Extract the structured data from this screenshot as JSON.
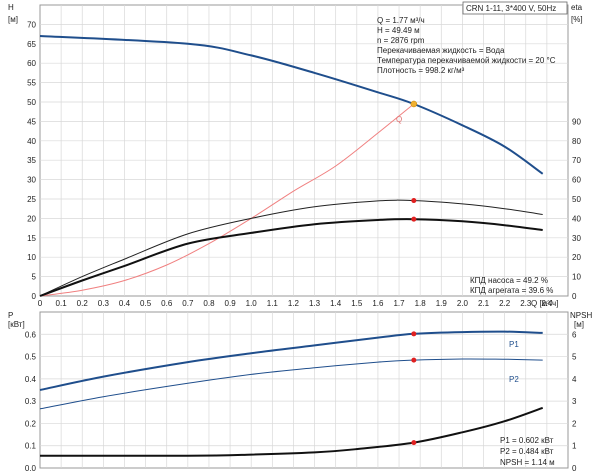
{
  "chart_data": [
    {
      "type": "line",
      "model": "CRN 1-11, 3*400 V, 50Hz",
      "x_label": "Q [м³/ч]",
      "x_ticks": [
        "0",
        "0.1",
        "0.2",
        "0.3",
        "0.4",
        "0.5",
        "0.6",
        "0.7",
        "0.8",
        "0.9",
        "1.0",
        "1.1",
        "1.2",
        "1.3",
        "1.4",
        "1.5",
        "1.6",
        "1.7",
        "1.8",
        "1.9",
        "2.0",
        "2.1",
        "2.2",
        "2.3",
        "2.4"
      ],
      "xlim": [
        0,
        2.5
      ],
      "left_axis": {
        "label_top": "H",
        "label_unit": "[м]",
        "ticks": [
          "0",
          "5",
          "10",
          "15",
          "20",
          "25",
          "30",
          "35",
          "40",
          "45",
          "50",
          "55",
          "60",
          "65",
          "70"
        ],
        "ylim": [
          0,
          75
        ]
      },
      "right_axis": {
        "label_top": "eta",
        "label_unit": "[%]",
        "ticks": [
          "0",
          "10",
          "20",
          "30",
          "40",
          "50",
          "60",
          "70",
          "80",
          "90"
        ],
        "ylim": [
          0,
          150
        ]
      },
      "info_lines": [
        "Q = 1.77 м³/ч",
        "H = 49.49 м",
        "n = 2876 rpm",
        "Перекачиваемая жидкость = Вода",
        "Температура перекачиваемой жидкости = 20 °C",
        "Плотность = 998.2 кг/м³"
      ],
      "eff_lines": [
        "КПД насоса = 49.2 %",
        "КПД агрегата = 39.6 %"
      ],
      "op_label": "Q",
      "op_point": {
        "x": 1.77,
        "H": 49.49,
        "eta_pump": 49.2,
        "eta_unit": 39.6
      },
      "series": [
        {
          "axis": "left",
          "color": "#1f4e8c",
          "width": 2,
          "x": [
            0,
            0.7,
            1.0,
            1.3,
            1.6,
            1.77,
            2.0,
            2.2,
            2.38
          ],
          "y": [
            67,
            65,
            62,
            57.5,
            52.5,
            49.49,
            44,
            38.5,
            31.5
          ]
        },
        {
          "axis": "left",
          "color": "#f08080",
          "width": 1,
          "x": [
            0,
            0.2,
            0.4,
            0.6,
            0.8,
            1.0,
            1.2,
            1.4,
            1.6,
            1.77
          ],
          "y": [
            0,
            1.5,
            4,
            8,
            13.5,
            20,
            27,
            33.5,
            42,
            49.49
          ]
        },
        {
          "axis": "right",
          "color": "#222222",
          "width": 1,
          "dashed": false,
          "x": [
            0,
            0.2,
            0.4,
            0.7,
            1.0,
            1.3,
            1.6,
            1.77,
            2.0,
            2.2,
            2.38
          ],
          "y": [
            0,
            10,
            19,
            32,
            40,
            46,
            49,
            49.2,
            47.5,
            45,
            42
          ]
        },
        {
          "axis": "right",
          "color": "#111111",
          "width": 2,
          "x": [
            0,
            0.2,
            0.4,
            0.7,
            1.0,
            1.3,
            1.6,
            1.77,
            2.0,
            2.2,
            2.38
          ],
          "y": [
            0,
            8,
            15.5,
            27,
            32.5,
            37,
            39.2,
            39.6,
            38.5,
            36.5,
            34
          ]
        }
      ]
    },
    {
      "type": "line",
      "x_ticks": [
        "0",
        "0.1",
        "0.2",
        "0.3",
        "0.4",
        "0.5",
        "0.6",
        "0.7",
        "0.8",
        "0.9",
        "1.0",
        "1.1",
        "1.2",
        "1.3",
        "1.4",
        "1.5",
        "1.6",
        "1.7",
        "1.8",
        "1.9",
        "2.0",
        "2.1",
        "2.2",
        "2.3",
        "2.4"
      ],
      "xlim": [
        0,
        2.5
      ],
      "left_axis": {
        "label_top": "P",
        "label_unit": "[кВт]",
        "ticks": [
          "0.0",
          "0.1",
          "0.2",
          "0.3",
          "0.4",
          "0.5",
          "0.6"
        ],
        "ylim": [
          0,
          0.7
        ]
      },
      "right_axis": {
        "label_top": "NPSH",
        "label_unit": "[м]",
        "ticks": [
          "0",
          "1",
          "2",
          "3",
          "4",
          "5",
          "6"
        ],
        "ylim": [
          0,
          7
        ]
      },
      "info_lines": [
        "P1 = 0.602 кВт",
        "P2 = 0.484 кВт",
        "NPSH = 1.14 м"
      ],
      "op_point": {
        "x": 1.77,
        "P1": 0.602,
        "P2": 0.484,
        "NPSH": 1.14
      },
      "series": [
        {
          "name": "P1",
          "axis": "left",
          "color": "#1f4e8c",
          "width": 2,
          "x": [
            0,
            0.3,
            0.7,
            1.0,
            1.3,
            1.6,
            1.77,
            2.0,
            2.2,
            2.38
          ],
          "y": [
            0.35,
            0.41,
            0.475,
            0.515,
            0.55,
            0.585,
            0.602,
            0.61,
            0.612,
            0.606
          ]
        },
        {
          "name": "P2",
          "axis": "left",
          "color": "#1f4e8c",
          "width": 1,
          "x": [
            0,
            0.3,
            0.7,
            1.0,
            1.3,
            1.6,
            1.77,
            2.0,
            2.2,
            2.38
          ],
          "y": [
            0.265,
            0.32,
            0.38,
            0.42,
            0.45,
            0.475,
            0.484,
            0.489,
            0.488,
            0.484
          ]
        },
        {
          "name": "NPSH",
          "axis": "right",
          "color": "#111111",
          "width": 2,
          "x": [
            0,
            0.7,
            1.0,
            1.3,
            1.5,
            1.77,
            2.0,
            2.2,
            2.38
          ],
          "y": [
            0.55,
            0.55,
            0.6,
            0.7,
            0.85,
            1.14,
            1.6,
            2.1,
            2.7
          ]
        }
      ]
    }
  ]
}
